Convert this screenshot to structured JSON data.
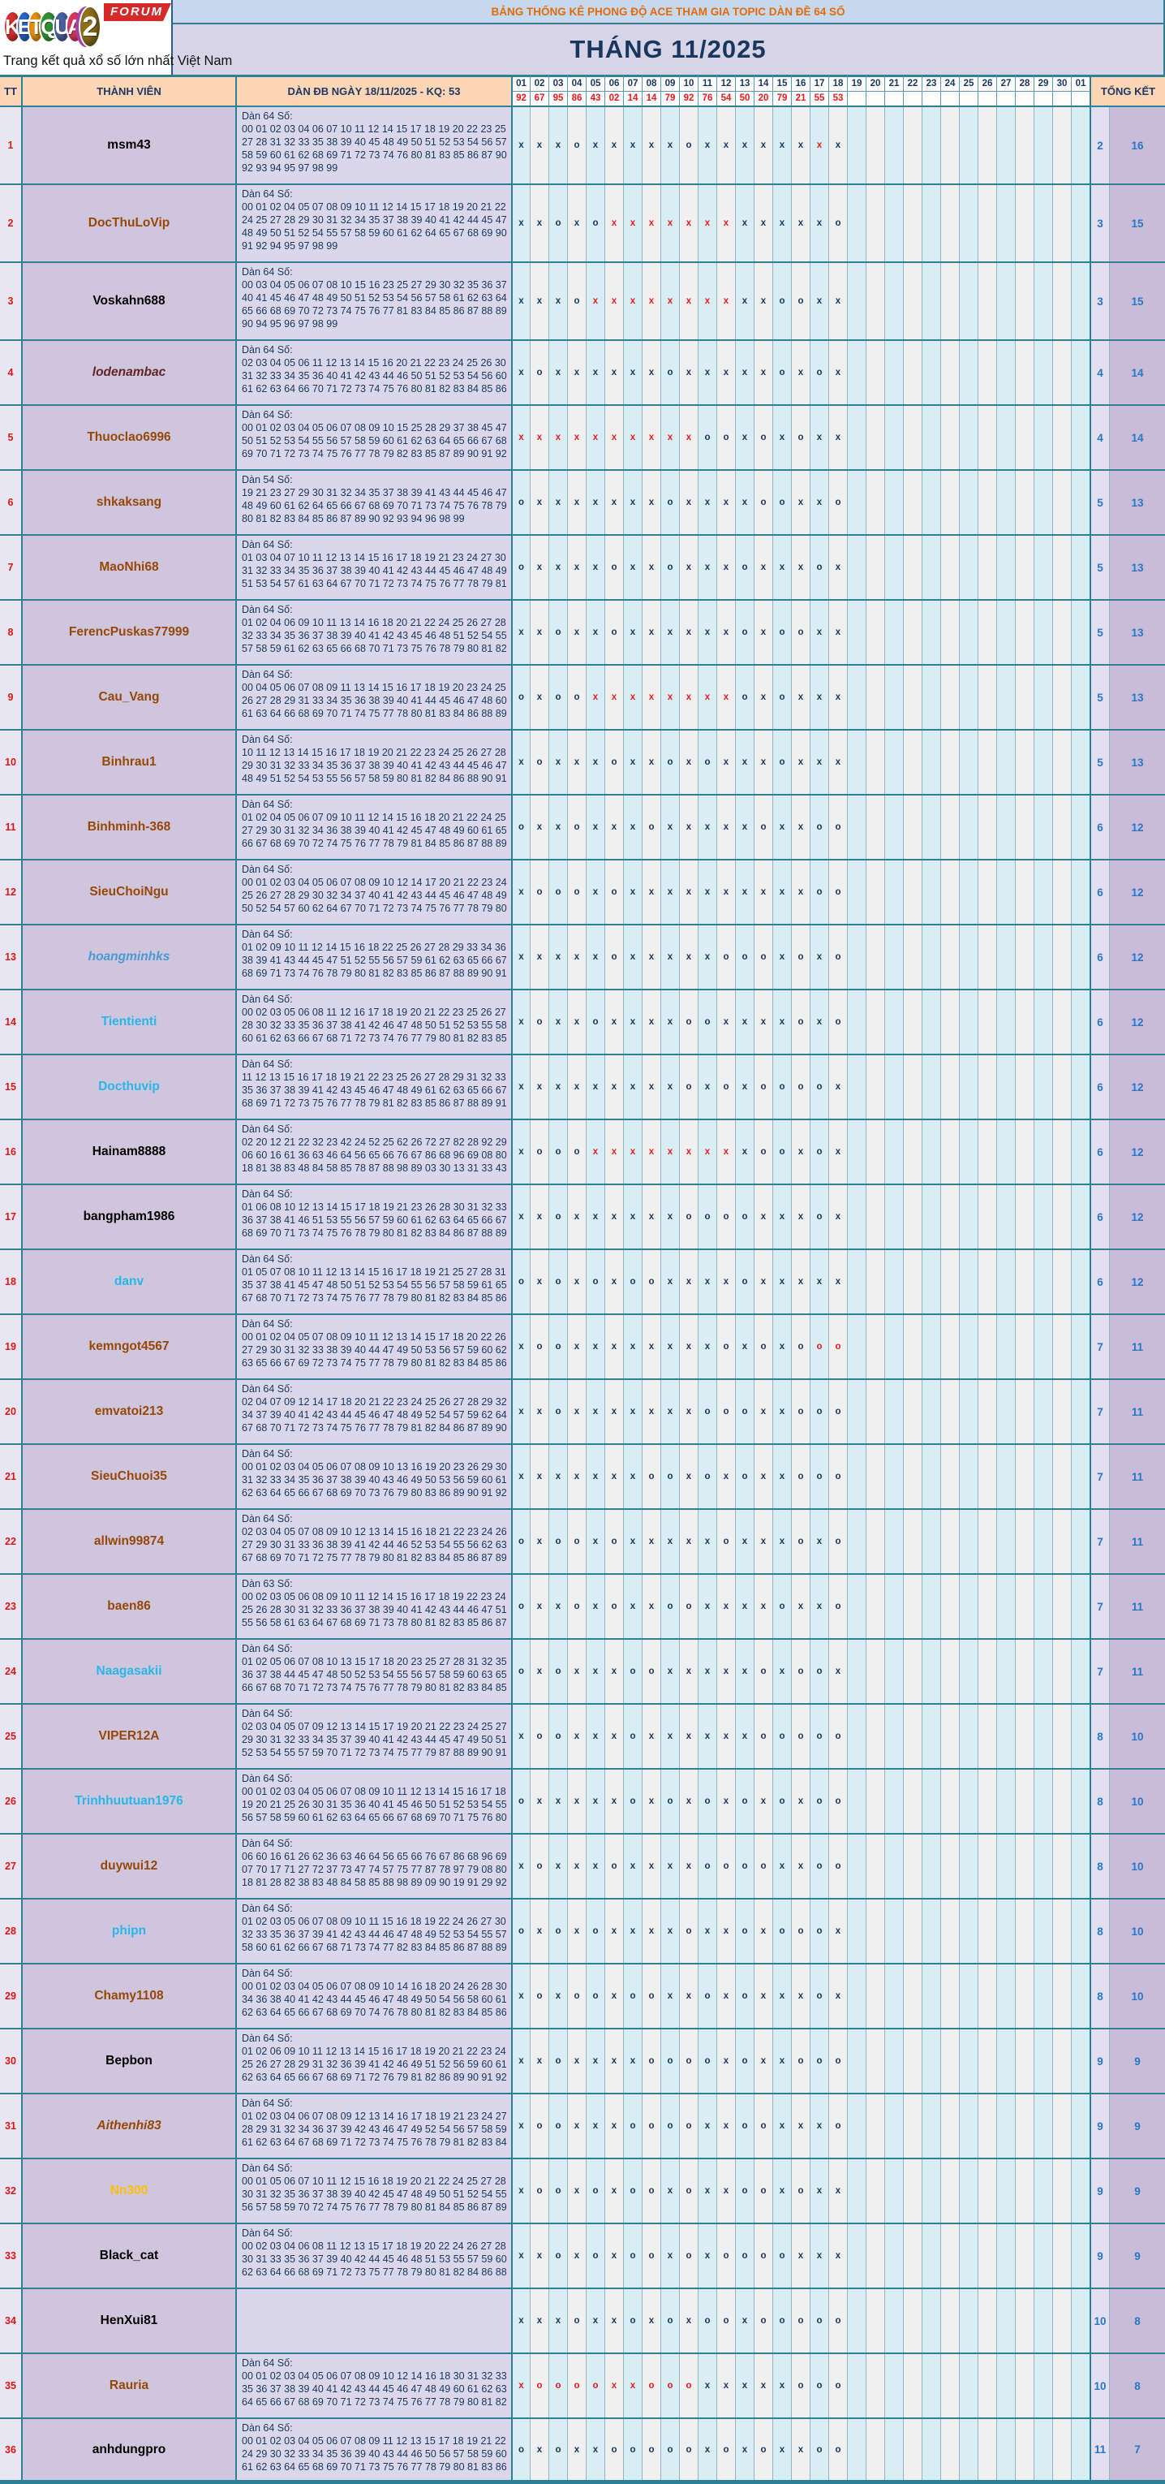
{
  "logo": {
    "letters": [
      {
        "ch": "K",
        "color": "#d42f2f"
      },
      {
        "ch": "E",
        "color": "#2864c8"
      },
      {
        "ch": "T",
        "color": "#e09112"
      },
      {
        "ch": "Q",
        "color": "#2f9132"
      },
      {
        "ch": "U",
        "color": "#4a5fa5"
      },
      {
        "ch": "A",
        "color": "#d6365e"
      },
      {
        "ch": "2",
        "color": "#8f711c",
        "big": true
      }
    ],
    "forum_label": "FORUM",
    "tagline": "Trang kết quả xổ số lớn nhất Việt Nam"
  },
  "header": {
    "title": "BẢNG THỐNG KÊ PHONG ĐỘ ACE THAM GIA TOPIC DÀN ĐỀ 64 SỐ",
    "month": "THÁNG 11/2025",
    "col_tt": "TT",
    "col_member": "THÀNH VIÊN",
    "col_dan": "DÀN ĐB NGÀY 18/11/2025 - KQ: 53",
    "col_total": "TỔNG KẾT",
    "days": [
      "01",
      "02",
      "03",
      "04",
      "05",
      "06",
      "07",
      "08",
      "09",
      "10",
      "11",
      "12",
      "13",
      "14",
      "15",
      "16",
      "17",
      "18",
      "19",
      "20",
      "21",
      "22",
      "23",
      "24",
      "25",
      "26",
      "27",
      "28",
      "29",
      "30",
      "01"
    ],
    "kq": [
      "92",
      "67",
      "95",
      "86",
      "43",
      "02",
      "14",
      "14",
      "79",
      "92",
      "76",
      "54",
      "50",
      "20",
      "79",
      "21",
      "55",
      "53"
    ]
  },
  "colors": {
    "accent_teal": "#2e8099",
    "navy": "#17375d",
    "red": "#e81c1c",
    "peach": "#fcd5b4",
    "title_orange": "#e36c0a"
  },
  "rows": [
    {
      "tt": "1",
      "name": "msm43",
      "color": "#000000",
      "tall": true,
      "label": "Dàn 64 Số:",
      "nums": "00 01 02 03 04 06 07 10 11 12 14 15 17 18 19 20 22 23 25 27 28 31 32 33 35 38 39 40 45 48 49 50 51 52 53 54 56 57 58 59 60 61 62 68 69 71 72 73 74 76 80 81 83 85 86 87 90 92 93 94 95 97 98 99",
      "marks": "x x x o x x x x x o x x x x x x xr x",
      "t1": "2",
      "t2": "16"
    },
    {
      "tt": "2",
      "name": "DocThuLoVip",
      "color": "#974806",
      "tall": true,
      "label": "Dàn 64 Số:",
      "nums": "00 01 02 04 05 07 08 09 10 11 12 14 15 17 18 19 20 21 22 24 25 27 28 29 30 31 32 34 35 37 38 39 40 41 42 44 45 47 48 49 50 51 52 54 55 57 58 59 60 61 62 64 65 67 68 69 90 91 92 94 95 97 98 99",
      "marks": "x x o x o xr xr xr xr xr xr xr x x x x x o",
      "t1": "3",
      "t2": "15"
    },
    {
      "tt": "3",
      "name": "Voskahn688",
      "color": "#000000",
      "tall": true,
      "label": "Dàn 64 Số:",
      "nums": "00 03 04 05 06 07 08 10 15 16 23 25 27 29 30 32 35 36 37 40 41 45 46 47 48 49 50 51 52 53 54 56 57 58 61 62 63 64 65 66 68 69 70 72 73 74 75 76 77 81 83 84 85 86 87 88 89 90 94 95 96 97 98 99",
      "marks": "x x x o xr xr xr xr xr xr xr xr x x o o x x",
      "t1": "3",
      "t2": "15"
    },
    {
      "tt": "4",
      "name": "lodenambac",
      "color": "#632423",
      "italic": true,
      "label": "Dàn 64 Số:",
      "nums": "02 03 04 05 06 11 12 13 14 15 16 20 21 22 23 24 25 26 30 31 32 33 34 35 36 40 41 42 43 44 46 50 51 52 53 54 56 60 61 62 63 64 66 70 71 72 73 74 75 76 80 81 82 83 84 85 86",
      "marks": "x o x x x x x x o x x x x x o x o x",
      "t1": "4",
      "t2": "14"
    },
    {
      "tt": "5",
      "name": "Thuoclao6996",
      "color": "#974806",
      "label": "Dàn 64 Số:",
      "nums": "00 01 02 03 04 05 06 07 08 09 10 15 25 28 29 37 38 45 47 50 51 52 53 54 55 56 57 58 59 60 61 62 63 64 65 66 67 68 69 70 71 72 73 74 75 76 77 78 79 82 83 85 87 89 90 91 92",
      "marks": "xr xr xr xr xr xr xr xr xr xr o o x o x o x x",
      "t1": "4",
      "t2": "14"
    },
    {
      "tt": "6",
      "name": "shkaksang",
      "color": "#974806",
      "label": "Dàn 54 Số:",
      "nums": "19 21 23 27 29 30 31 32 34 35 37 38 39 41 43 44 45 46 47 48 49 60 61 62 64 65 66 67 68 69 70 71 73 74 75 76 78 79 80 81 82 83 84 85 86 87 89 90 92 93 94 96 98 99",
      "marks": "o x x x x x x x o x x x x o o x x o",
      "t1": "5",
      "t2": "13"
    },
    {
      "tt": "7",
      "name": "MaoNhi68",
      "color": "#974806",
      "label": "Dàn 64 Số:",
      "nums": "01 03 04 07 10 11 12 13 14 15 16 17 18 19 21 23 24 27 30 31 32 33 34 35 36 37 38 39 40 41 42 43 44 45 46 47 48 49 51 53 54 57 61 63 64 67 70 71 72 73 74 75 76 77 78 79 81",
      "marks": "o x x x x o x x o x x x o x x x o x",
      "t1": "5",
      "t2": "13"
    },
    {
      "tt": "8",
      "name": "FerencPuskas77999",
      "color": "#974806",
      "label": "Dàn 64 Số:",
      "nums": "01 02 04 06 09 10 11 13 14 16 18 20 21 22 24 25 26 27 28 32 33 34 35 36 37 38 39 40 41 42 43 45 46 48 51 52 54 55 57 58 59 61 62 63 65 66 68 70 71 73 75 76 78 79 80 81 82",
      "marks": "x x o x x o x x x x x x o x o o x x",
      "t1": "5",
      "t2": "13"
    },
    {
      "tt": "9",
      "name": "Cau_Vang",
      "color": "#974806",
      "label": "Dàn 64 Số:",
      "nums": "00 04 05 06 07 08 09 11 13 14 15 16 17 18 19 20 23 24 25 26 27 28 29 31 33 34 35 36 38 39 40 41 44 45 46 47 48 60 61 63 64 66 68 69 70 71 74 75 77 78 80 81 83 84 86 88 89",
      "marks": "o x o o xr xr xr xr xr xr xr xr o x o x x x",
      "t1": "5",
      "t2": "13"
    },
    {
      "tt": "10",
      "name": "Binhrau1",
      "color": "#974806",
      "label": "Dàn 64 Số:",
      "nums": "10 11 12 13 14 15 16 17 18 19 20 21 22 23 24 25 26 27 28 29 30 31 32 33 34 35 36 37 38 39 40 41 42 43 44 45 46 47 48 49 51 52 54 53 55 56 57 58 59 80 81 82 84 86 88 90 91",
      "marks": "x o x x x o x x o x o x x x o x x x",
      "t1": "5",
      "t2": "13"
    },
    {
      "tt": "11",
      "name": "Binhminh-368",
      "color": "#974806",
      "label": "Dàn 64 Số:",
      "nums": "01 02 04 05 06 07 09 10 11 12 14 15 16 18 20 21 22 24 25 27 29 30 31 32 34 36 38 39 40 41 42 45 47 48 49 60 61 65 66 67 68 69 70 72 74 75 76 77 78 79 81 84 85 86 87 88 89",
      "marks": "o x x o x x x o x x x x x o x x o o",
      "t1": "6",
      "t2": "12"
    },
    {
      "tt": "12",
      "name": "SieuChoiNgu",
      "color": "#974806",
      "label": "Dàn 64 Số:",
      "nums": "00 01 02 03 04 05 06 07 08 09 10 12 14 17 20 21 22 23 24 25 26 27 28 29 30 32 34 37 40 41 42 43 44 45 46 47 48 49 50 52 54 57 60 62 64 67 70 71 72 73 74 75 76 77 78 79 80",
      "marks": "x o o o x o x x x x x x x x x x o o",
      "t1": "6",
      "t2": "12"
    },
    {
      "tt": "13",
      "name": "hoangminhks",
      "color": "#4a9ad4",
      "italic": true,
      "label": "Dàn 64 Số:",
      "nums": "01 02 09 10 11 12 14 15 16 18 22 25 26 27 28 29 33 34 36 38 39 41 43 44 45 47 51 52 55 56 57 59 61 62 63 65 66 67 68 69 71 73 74 76 78 79 80 81 82 83 85 86 87 88 89 90 91",
      "marks": "x x x x x o x x x x x o o o x o x o",
      "t1": "6",
      "t2": "12"
    },
    {
      "tt": "14",
      "name": "Tientienti",
      "color": "#29b7ea",
      "label": "Dàn 64 Số:",
      "nums": "00 02 03 05 06 08 11 12 16 17 18 19 20 21 22 23 25 26 27 28 30 32 33 35 36 37 38 41 42 46 47 48 50 51 52 53 55 58 60 61 62 63 66 67 68 71 72 73 74 76 77 79 80 81 82 83 85",
      "marks": "x o x x o x x x x o o x x x x o x o",
      "t1": "6",
      "t2": "12"
    },
    {
      "tt": "15",
      "name": "Docthuvip",
      "color": "#29b7ea",
      "label": "Dàn 64 Số:",
      "nums": "11 12 13 15 16 17 18 19 21 22 23 25 26 27 28 29 31 32 33 35 36 37 38 39 41 42 43 45 46 47 48 49 61 62 63 65 66 67 68 69 71 72 73 75 76 77 78 79 81 82 83 85 86 87 88 89 91",
      "marks": "x x x x x x x x x o x o x o o o o x",
      "t1": "6",
      "t2": "12"
    },
    {
      "tt": "16",
      "name": "Hainam8888",
      "color": "#000000",
      "label": "Dàn 64 Số:",
      "nums": "02 20 12 21 22 32 23 42 24 52 25 62 26 72 27 82 28 92 29 06 60 16 61 36 63 46 64 56 65 66 76 67 86 68 96 69 08 80 18 81 38 83 48 84 58 85 78 87 88 98 89 03 30 13 31 33 43",
      "marks": "x o o o xr xr xr xr xr xr xr xr x o o x o x",
      "t1": "6",
      "t2": "12"
    },
    {
      "tt": "17",
      "name": "bangpham1986",
      "color": "#000000",
      "label": "Dàn 64 Số:",
      "nums": "01 06 08 10 12 13 14 15 17 18 19 21 23 26 28 30 31 32 33 36 37 38 41 46 51 53 55 56 57 59 60 61 62 63 64 65 66 67 68 69 70 71 73 74 75 76 78 79 80 81 82 83 84 86 87 88 89",
      "marks": "x x o x x x x x x o o o o x x x o x",
      "t1": "6",
      "t2": "12"
    },
    {
      "tt": "18",
      "name": "danv",
      "color": "#29b7ea",
      "label": "Dàn 64 Số:",
      "nums": "01 05 07 08 10 11 12 13 14 15 16 17 18 19 21 25 27 28 31 35 37 38 41 45 47 48 50 51 52 53 54 55 56 57 58 59 61 65 67 68 70 71 72 73 74 75 76 77 78 79 80 81 82 83 84 85 86",
      "marks": "o x o x o x o o x x x x o x x x x x",
      "t1": "6",
      "t2": "12"
    },
    {
      "tt": "19",
      "name": "kemngot4567",
      "color": "#974806",
      "label": "Dàn 64 Số:",
      "nums": "00 01 02 04 05 07 08 09 10 11 12 13 14 15 17 18 20 22 26 27 29 30 31 32 33 38 39 40 44 47 49 50 53 56 57 59 60 62 63 65 66 67 69 72 73 74 75 77 78 79 80 81 82 83 84 85 86",
      "marks": "x o o x x x x x x x x o x o x o or or",
      "t1": "7",
      "t2": "11"
    },
    {
      "tt": "20",
      "name": "emvatoi213",
      "color": "#974806",
      "label": "Dàn 64 Số:",
      "nums": "02 04 07 09 12 14 17 18 20 21 22 23 24 25 26 27 28 29 32 34 37 39 40 41 42 43 44 45 46 47 48 49 52 54 57 59 62 64 67 68 70 71 72 73 74 75 76 77 78 79 81 82 84 86 87 89 90",
      "marks": "x x o x x x x x x x o o o x x o o o",
      "t1": "7",
      "t2": "11"
    },
    {
      "tt": "21",
      "name": "SieuChuoi35",
      "color": "#974806",
      "label": "Dàn 64 Số:",
      "nums": "00 01 02 03 04 05 06 07 08 09 10 13 16 19 20 23 26 29 30 31 32 33 34 35 36 37 38 39 40 43 46 49 50 53 56 59 60 61 62 63 64 65 66 67 68 69 70 73 76 79 80 83 86 89 90 91 92",
      "marks": "x x x x x x x o o x o x o x x o o o",
      "t1": "7",
      "t2": "11"
    },
    {
      "tt": "22",
      "name": "allwin99874",
      "color": "#974806",
      "label": "Dàn 64 Số:",
      "nums": "02 03 04 05 07 08 09 10 12 13 14 15 16 18 21 22 23 24 26 27 29 30 31 33 36 38 39 41 42 44 46 52 53 54 55 56 62 63 67 68 69 70 71 72 75 77 78 79 80 81 82 83 84 85 86 87 89",
      "marks": "o x o o x o x x x x x o x x x o x o",
      "t1": "7",
      "t2": "11"
    },
    {
      "tt": "23",
      "name": "baen86",
      "color": "#974806",
      "label": "Dàn 63 Số:",
      "nums": "00 02 03 05 06 08 09 10 11 12 14 15 16 17 18 19 22 23 24 25 26 28 30 31 32 33 36 37 38 39 40 41 42 43 44 46 47 51 55 56 58 61 63 64 67 68 69 71 73 78 80 81 82 83 85 86 87",
      "marks": "o x x o x o x x o o x x x x o x x o",
      "t1": "7",
      "t2": "11"
    },
    {
      "tt": "24",
      "name": "Naagasakii",
      "color": "#29b7ea",
      "label": "Dàn 64 Số:",
      "nums": "01 02 05 06 07 08 10 13 15 17 18 20 23 25 27 28 31 32 35 36 37 38 44 45 47 48 50 52 53 54 55 56 57 58 59 60 63 65 66 67 68 70 71 72 73 74 75 76 77 78 79 80 81 82 83 84 85",
      "marks": "o x o x x x o o x x x x x o x o o x",
      "t1": "7",
      "t2": "11"
    },
    {
      "tt": "25",
      "name": "VIPER12A",
      "color": "#974806",
      "label": "Dàn 64 Số:",
      "nums": "02 03 04 05 07 09 12 13 14 15 17 19 20 21 22 23 24 25 27 29 30 31 32 33 34 35 37 39 40 41 42 43 44 45 47 49 50 51 52 53 54 55 57 59 70 71 72 73 74 75 77 79 87 88 89 90 91",
      "marks": "x o o x x x o x x x x x x o o o o o",
      "t1": "8",
      "t2": "10"
    },
    {
      "tt": "26",
      "name": "Trinhhuutuan1976",
      "color": "#29b7ea",
      "label": "Dàn 64 Số:",
      "nums": "00 01 02 03 04 05 06 07 08 09 10 11 12 13 14 15 16 17 18 19 20 21 25 26 30 31 35 36 40 41 45 46 50 51 52 53 54 55 56 57 58 59 60 61 62 63 64 65 66 67 68 69 70 71 75 76 80",
      "marks": "o x x x x x o x o x o x o x o x o o",
      "t1": "8",
      "t2": "10"
    },
    {
      "tt": "27",
      "name": "duywui12",
      "color": "#974806",
      "label": "Dàn 64 Số:",
      "nums": "06 60 16 61 26 62 36 63 46 64 56 65 66 76 67 86 68 96 69 07 70 17 71 27 72 37 73 47 74 57 75 77 87 78 97 79 08 80 18 81 28 82 38 83 48 84 58 85 88 98 89 09 90 19 91 29 92",
      "marks": "x o x x x o x x x x o o o o x x o o",
      "t1": "8",
      "t2": "10"
    },
    {
      "tt": "28",
      "name": "phipn",
      "color": "#29b7ea",
      "label": "Dàn 64 Số:",
      "nums": "01 02 03 05 06 07 08 09 10 11 15 16 18 19 22 24 26 27 30 32 33 35 36 37 39 41 42 43 44 46 47 48 49 52 53 54 55 57 58 60 61 62 66 67 68 71 73 74 77 82 83 84 85 86 87 88 89",
      "marks": "o x o x o x x x x o x x o x o o o x",
      "t1": "8",
      "t2": "10"
    },
    {
      "tt": "29",
      "name": "Chamy1108",
      "color": "#974806",
      "label": "Dàn 64 Số:",
      "nums": "00 01 02 03 04 05 06 07 08 09 10 14 16 18 20 24 26 28 30 34 36 38 40 41 42 43 44 45 46 47 48 49 50 54 56 58 60 61 62 63 64 65 66 67 68 69 70 74 76 78 80 81 82 83 84 85 86",
      "marks": "x o x o o x o o x x o x o x x x o x",
      "t1": "8",
      "t2": "10"
    },
    {
      "tt": "30",
      "name": "Bepbon",
      "color": "#000000",
      "label": "Dàn 64 Số:",
      "nums": "01 02 06 09 10 11 12 13 14 15 16 17 18 19 20 21 22 23 24 25 26 27 28 29 31 32 36 39 41 42 46 49 51 52 56 59 60 61 62 63 64 65 66 67 68 69 71 72 76 79 81 82 86 89 90 91 92",
      "marks": "x x o x x x x o o o o x o x x o o o",
      "t1": "9",
      "t2": "9"
    },
    {
      "tt": "31",
      "name": "Aithenhi83",
      "color": "#974806",
      "italic": true,
      "label": "Dàn 64 Số:",
      "nums": "01 02 03 04 06 07 08 09 12 13 14 16 17 18 19 21 23 24 27 28 29 31 32 34 36 37 39 42 43 46 47 49 52 54 56 57 58 59 61 62 63 64 67 68 69 71 72 73 74 75 76 78 79 81 82 83 84",
      "marks": "x o o x x x o o o o x x o o x x x o",
      "t1": "9",
      "t2": "9"
    },
    {
      "tt": "32",
      "name": "Nn300",
      "color": "#ffc000",
      "label": "Dàn 64 Số:",
      "nums": "00 01 05 06 07 10 11 12 15 16 18 19 20 21 22 24 25 27 28 30 31 32 35 36 37 38 39 40 42 45 47 48 49 50 51 52 54 55 56 57 58 59 70 72 74 75 76 77 78 79 80 81 84 85 86 87 89",
      "marks": "x o o x o x o o x o x x o o x o x x",
      "t1": "9",
      "t2": "9"
    },
    {
      "tt": "33",
      "name": "Black_cat",
      "color": "#000000",
      "label": "Dàn 64 Số:",
      "nums": "00 02 03 04 06 08 11 12 13 15 17 18 19 20 22 24 26 27 28 30 31 33 35 36 37 39 40 42 44 45 46 48 51 53 55 57 59 60 62 63 64 66 68 69 71 72 73 75 77 78 79 80 81 82 84 86 88",
      "marks": "x x o x o x o o x o x o o o o x x x",
      "t1": "9",
      "t2": "9"
    },
    {
      "tt": "34",
      "name": "HenXui81",
      "color": "#000000",
      "label": "",
      "nums": "",
      "marks": "x x x o x x o x o x o o x o o o o o",
      "t1": "10",
      "t2": "8"
    },
    {
      "tt": "35",
      "name": "Rauria",
      "color": "#974806",
      "label": "Dàn 64 Số:",
      "nums": "00 01 02 03 04 05 06 07 08 09 10 12 14 16 18 30 31 32 33 35 36 37 38 39 40 41 42 43 44 45 46 47 48 49 60 61 62 63 64 65 66 67 68 69 70 71 72 73 74 75 76 77 78 79 80 81 82",
      "marks": "xr or or or or xr xr or or or x x x x x o o o",
      "t1": "10",
      "t2": "8"
    },
    {
      "tt": "36",
      "name": "anhdungpro",
      "color": "#000000",
      "label": "Dàn 64 Số:",
      "nums": "00 01 02 03 04 05 06 07 08 09 11 12 13 15 17 18 19 21 22 24 29 30 32 33 34 35 36 39 40 43 44 46 50 56 57 58 59 60 61 62 63 64 65 68 69 70 71 73 75 76 77 78 79 80 81 83 86",
      "marks": "o x o x x o o o o o x o x o x x o o",
      "t1": "11",
      "t2": "7"
    }
  ]
}
